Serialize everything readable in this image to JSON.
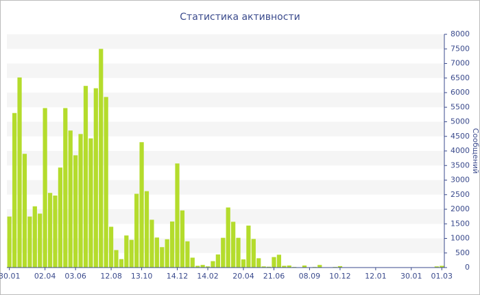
{
  "chart_data": {
    "type": "bar",
    "title": "Статистика активности",
    "ylabel": "Сообщений",
    "categories": [
      "30.01",
      null,
      null,
      null,
      null,
      null,
      null,
      "02.04",
      null,
      null,
      null,
      null,
      null,
      "03.06",
      null,
      null,
      null,
      null,
      null,
      null,
      "12.08",
      null,
      null,
      null,
      null,
      null,
      "13.10",
      null,
      null,
      null,
      null,
      null,
      null,
      "14.12",
      null,
      null,
      null,
      null,
      null,
      "14.02",
      null,
      null,
      null,
      null,
      null,
      null,
      "20.04",
      null,
      null,
      null,
      null,
      null,
      "21.06",
      null,
      null,
      null,
      null,
      null,
      null,
      "08.09",
      null,
      null,
      null,
      null,
      null,
      "10.12",
      null,
      null,
      null,
      null,
      null,
      null,
      "12.01",
      null,
      null,
      null,
      null,
      null,
      null,
      "30.01",
      null,
      null,
      null,
      null,
      null,
      "01.03"
    ],
    "values": [
      1750,
      5300,
      6520,
      3900,
      1750,
      2100,
      1850,
      5470,
      2560,
      2470,
      3430,
      5470,
      4700,
      3850,
      4580,
      6230,
      4430,
      6150,
      7500,
      5850,
      1400,
      600,
      290,
      1100,
      950,
      2530,
      4300,
      2620,
      1640,
      1030,
      700,
      970,
      1580,
      3570,
      1960,
      900,
      340,
      60,
      90,
      40,
      220,
      450,
      1020,
      2060,
      1570,
      1020,
      280,
      1440,
      980,
      320,
      40,
      30,
      360,
      440,
      60,
      70,
      20,
      10,
      70,
      10,
      20,
      90,
      10,
      10,
      20,
      50,
      10,
      10,
      10,
      10,
      10,
      10,
      10,
      10,
      10,
      10,
      10,
      10,
      10,
      10,
      10,
      10,
      10,
      10,
      40,
      60
    ],
    "color": "#b4dc2c",
    "ylim": [
      0,
      8000
    ],
    "yticks": [
      0,
      500,
      1000,
      1500,
      2000,
      2500,
      3000,
      3500,
      4000,
      4500,
      5000,
      5500,
      6000,
      6500,
      7000,
      7500,
      8000
    ],
    "grid": true
  }
}
